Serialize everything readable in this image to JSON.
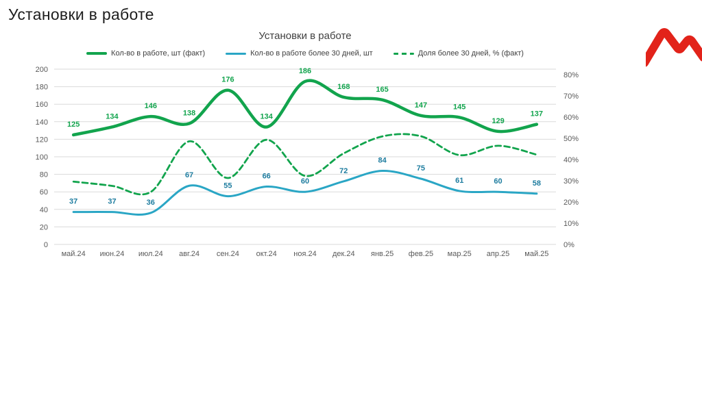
{
  "page": {
    "title": "Установки в работе"
  },
  "logo": {
    "name": "magnit-m-logo",
    "color": "#E2231A"
  },
  "chart_data": {
    "type": "line",
    "title": "Установки в работе",
    "categories": [
      "май.24",
      "июн.24",
      "июл.24",
      "авг.24",
      "сен.24",
      "окт.24",
      "ноя.24",
      "дек.24",
      "янв.25",
      "фев.25",
      "мар.25",
      "апр.25",
      "май.25"
    ],
    "series": [
      {
        "name": "Кол-во в работе, шт (факт)",
        "axis": "left",
        "style": "solid",
        "color": "#12A44D",
        "label_color": "#12A44D",
        "width": 4.5,
        "data_labels": true,
        "values": [
          125,
          134,
          146,
          138,
          176,
          134,
          186,
          168,
          165,
          147,
          145,
          129,
          137
        ]
      },
      {
        "name": "Кол-во в работе более 30 дней, шт",
        "axis": "left",
        "style": "solid",
        "color": "#2AA6C5",
        "label_color": "#1D7C9F",
        "width": 3,
        "data_labels": true,
        "values": [
          37,
          37,
          36,
          67,
          55,
          66,
          60,
          72,
          84,
          75,
          61,
          60,
          58
        ]
      },
      {
        "name": "Доля более 30 дней, % (факт)",
        "axis": "right",
        "style": "dashed",
        "color": "#12A44D",
        "width": 2.8,
        "data_labels": false,
        "values": [
          29.6,
          27.6,
          24.7,
          48.6,
          31.3,
          49.3,
          32.3,
          42.9,
          50.9,
          51.0,
          42.1,
          46.5,
          42.3
        ]
      }
    ],
    "left_axis": {
      "min": 0,
      "max": 200,
      "step": 20,
      "ticks": [
        "0",
        "20",
        "40",
        "60",
        "80",
        "100",
        "120",
        "140",
        "160",
        "180",
        "200"
      ]
    },
    "right_axis": {
      "min": 0,
      "max": 80,
      "step": 10,
      "plot_max": 82.6,
      "ticks": [
        "0%",
        "10%",
        "20%",
        "30%",
        "40%",
        "50%",
        "60%",
        "70%",
        "80%"
      ]
    },
    "grid": true,
    "legend_position": "top",
    "colors": {
      "grid": "#DADADA",
      "axis_text": "#595959",
      "title_text": "#404040"
    }
  }
}
